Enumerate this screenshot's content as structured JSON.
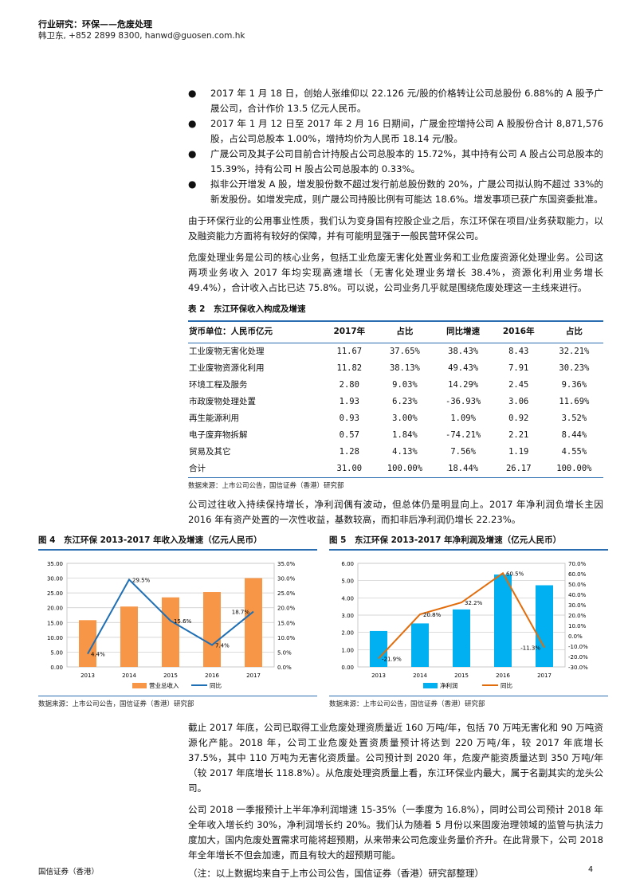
{
  "header": {
    "section": "行业研究：环保——危废处理",
    "author": "韩卫东, +852 2899 8300, hanwd@guosen.com.hk"
  },
  "bullets": [
    "2017 年 1 月 18 日，创始人张维仰以 22.126 元/股的价格转让公司总股份 6.88%的 A 股予广晟公司，合计作价 13.5 亿元人民币。",
    "2017 年 1 月 12 日至 2017 年 2 月 16 日期间，广晟金控增持公司 A 股股份合计 8,871,576 股，占公司总股本 1.00%，增持均价为人民币 18.14 元/股。",
    "广晟公司及其子公司目前合计持股占公司总股本的 15.72%，其中持有公司 A 股占公司总股本的 15.39%，持有公司 H 股占公司总股本的 0.33%。",
    "拟非公开增发 A 股，增发股份数不超过发行前总股份数的 20%，广晟公司拟认购不超过 33%的新发股份。如增发完成，则广晟公司持股比例有可能达 18.6%。增发事项已获广东国资委批准。"
  ],
  "para1": "由于环保行业的公用事业性质，我们认为变身国有控股企业之后，东江环保在项目/业务获取能力，以及融资能力方面将有较好的保障，并有可能明显强于一般民营环保公司。",
  "para2": "危废处理业务是公司的核心业务，包括工业危废无害化处置业务和工业危废资源化处理业务。公司这两项业务收入 2017 年均实现高速增长（无害化处理业务增长 38.4%，资源化利用业务增长 49.4%），合计收入占比已达 75.8%。可以说，公司业务几乎就是围绕危废处理这一主线来进行。",
  "table": {
    "title": "表 2　东江环保收入构成及增速",
    "headers": [
      "货币单位：人民币亿元",
      "2017年",
      "占比",
      "同比增速",
      "2016年",
      "占比"
    ],
    "rows": [
      [
        "工业废物无害化处理",
        "11.67",
        "37.65%",
        "38.43%",
        "8.43",
        "32.21%"
      ],
      [
        "工业废物资源化利用",
        "11.82",
        "38.13%",
        "49.43%",
        "7.91",
        "30.23%"
      ],
      [
        "环境工程及服务",
        "2.80",
        "9.03%",
        "14.29%",
        "2.45",
        "9.36%"
      ],
      [
        "市政废物处理处置",
        "1.93",
        "6.23%",
        "-36.93%",
        "3.06",
        "11.69%"
      ],
      [
        "再生能源利用",
        "0.93",
        "3.00%",
        "1.09%",
        "0.92",
        "3.52%"
      ],
      [
        "电子废弃物拆解",
        "0.57",
        "1.84%",
        "-74.21%",
        "2.21",
        "8.44%"
      ],
      [
        "贸易及其它",
        "1.28",
        "4.13%",
        "7.56%",
        "1.19",
        "4.55%"
      ],
      [
        "合计",
        "31.00",
        "100.00%",
        "18.44%",
        "26.17",
        "100.00%"
      ]
    ],
    "source": "数据来源：上市公司公告，国信证券（香港）研究部"
  },
  "para3": "公司过往收入持续保持增长，净利润偶有波动，但总体仍是明显向上。2017 年净利润负增长主因 2016 年有资产处置的一次性收益，基数较高，而扣非后净利润仍增长 22.23%。",
  "chart_data": [
    {
      "type": "bar",
      "title": "图 4　东江环保 2013-2017 年收入及增速（亿元人民币）",
      "categories": [
        "2013",
        "2014",
        "2015",
        "2016",
        "2017"
      ],
      "series": [
        {
          "name": "营业总收入",
          "type": "bar",
          "axis": "left",
          "values": [
            15.8,
            20.4,
            23.5,
            25.3,
            30.0
          ],
          "color": "#f79646"
        },
        {
          "name": "同比",
          "type": "line",
          "axis": "right",
          "values": [
            4.4,
            29.5,
            15.6,
            7.4,
            18.7
          ],
          "labels": [
            "4.4%",
            "29.5%",
            "15.6%",
            "7.4%",
            "18.7%"
          ],
          "color": "#1f6fb5"
        }
      ],
      "ylim": [
        0,
        35
      ],
      "yticks": [
        "0.00",
        "5.00",
        "10.00",
        "15.00",
        "20.00",
        "25.00",
        "30.00",
        "35.00"
      ],
      "y2lim": [
        0,
        35
      ],
      "y2ticks": [
        "0.0%",
        "5.0%",
        "10.0%",
        "15.0%",
        "20.0%",
        "25.0%",
        "30.0%",
        "35.0%"
      ],
      "grid": true,
      "legend": "bottom",
      "source": "数据来源：上市公司公告，国信证券（香港）研究部"
    },
    {
      "type": "bar",
      "title": "图 5　东江环保 2013-2017 年净利润及增速（亿元人民币）",
      "categories": [
        "2013",
        "2014",
        "2015",
        "2016",
        "2017"
      ],
      "series": [
        {
          "name": "净利润",
          "type": "bar",
          "axis": "left",
          "values": [
            2.08,
            2.52,
            3.33,
            5.35,
            4.73
          ],
          "color": "#00b0f0"
        },
        {
          "name": "同比",
          "type": "line",
          "axis": "right",
          "values": [
            -21.9,
            20.8,
            32.2,
            60.5,
            -11.3
          ],
          "labels": [
            "-21.9%",
            "20.8%",
            "32.2%",
            "60.5%",
            "-11.3%"
          ],
          "color": "#e36c0a"
        }
      ],
      "ylim": [
        0,
        6
      ],
      "yticks": [
        "0.00",
        "1.00",
        "2.00",
        "3.00",
        "4.00",
        "5.00",
        "6.00"
      ],
      "y2lim": [
        -30,
        70
      ],
      "y2ticks": [
        "-30.0%",
        "-20.0%",
        "-10.0%",
        "0.0%",
        "10.0%",
        "20.0%",
        "30.0%",
        "40.0%",
        "50.0%",
        "60.0%",
        "70.0%"
      ],
      "grid": true,
      "legend": "bottom",
      "source": "数据来源：上市公司公告，国信证券（香港）研究部"
    }
  ],
  "para4": "截止 2017 年底，公司已取得工业危废处理资质量近 160 万吨/年，包括 70 万吨无害化和 90 万吨资源化产能。2018 年，公司工业危废处置资质量预计将达到 220 万吨/年，较 2017 年底增长 37.5%，其中 110 万吨为无害化资质量。公司预计到 2020 年，危废产能资质量达到 350 万吨/年（较 2017 年底增长 118.8%）。从危废处理资质量上看，东江环保业内最大，属于名副其实的龙头公司。",
  "para5": "公司 2018 一季报预计上半年净利润增速 15-35%（一季度为 16.8%），同时公司公司预计 2018 年全年收入增长约 30%，净利润增长约 20%。我们认为随着 5 月份以来固废治理领域的监管与执法力度加大，国内危废处置需求可能将超预期，从来带来公司危废业务量价齐升。在此背景下，公司 2018 年全年增长不但会加速，而且有较大的超预期可能。",
  "note": "（注：以上数据均来自于上市公司公告，国信证券（香港）研究部整理）",
  "footer": {
    "company": "国信证券（香港）",
    "page": "4"
  }
}
